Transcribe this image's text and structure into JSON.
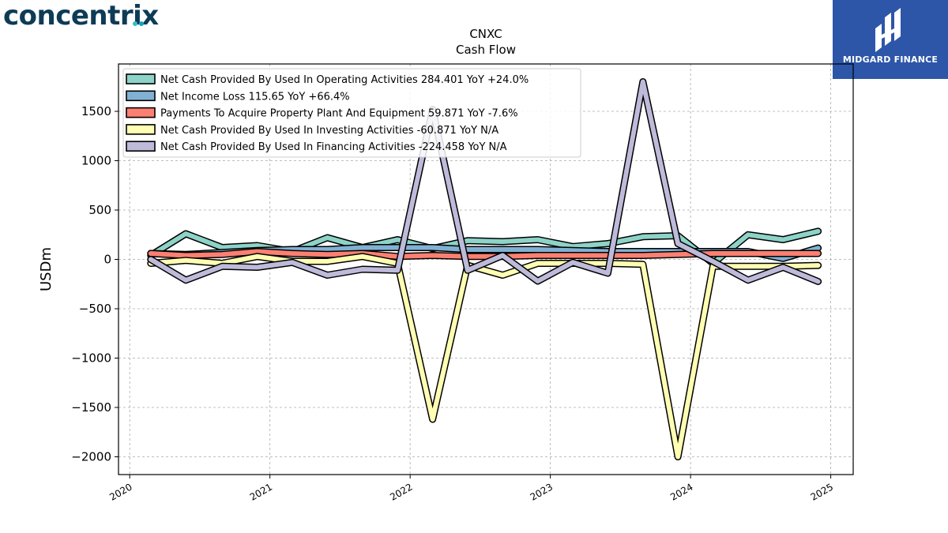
{
  "brand": {
    "name": "concentrix",
    "dot_colors": [
      "#2fc1c5",
      "#1aa3b8"
    ]
  },
  "partner": {
    "name": "MIDGARD FINANCE",
    "color": "#2d56a8"
  },
  "chart_data": {
    "type": "line",
    "title": "CNXC",
    "subtitle": "Cash Flow",
    "ylabel": "USDm",
    "xlabel": "",
    "ylim": [
      -2180,
      1980
    ],
    "xlim": [
      2019.92,
      2025.16
    ],
    "yticks": [
      -2000,
      -1500,
      -1000,
      -500,
      0,
      500,
      1000,
      1500
    ],
    "ytick_labels": [
      "−2000",
      "−1500",
      "−1000",
      "−500",
      "0",
      "500",
      "1000",
      "1500"
    ],
    "xticks": [
      2020,
      2021,
      2022,
      2023,
      2024,
      2025
    ],
    "xtick_labels": [
      "2020",
      "2021",
      "2022",
      "2023",
      "2024",
      "2025"
    ],
    "grid": true,
    "legend_position": "upper-left",
    "x": [
      2020.15,
      2020.4,
      2020.66,
      2020.91,
      2021.16,
      2021.41,
      2021.66,
      2021.91,
      2022.16,
      2022.41,
      2022.66,
      2022.91,
      2023.16,
      2023.41,
      2023.66,
      2023.91,
      2024.16,
      2024.41,
      2024.66,
      2024.91
    ],
    "series": [
      {
        "name": "Net Cash Provided By Used In Operating Activities",
        "legend_text": "Net Cash Provided By Used In Operating Activities  284.401 YoY +24.0%",
        "color": "#8dd3c7",
        "values": [
          40,
          260,
          120,
          140,
          80,
          220,
          120,
          200,
          110,
          190,
          180,
          200,
          130,
          160,
          230,
          240,
          -40,
          250,
          200,
          285
        ]
      },
      {
        "name": "Net Income Loss",
        "legend_text": "Net Income Loss  115.65 YoY +66.4%",
        "color": "#80b1d3",
        "values": [
          60,
          50,
          70,
          90,
          100,
          100,
          120,
          120,
          120,
          100,
          100,
          100,
          90,
          80,
          80,
          80,
          80,
          80,
          10,
          115
        ]
      },
      {
        "name": "Payments To Acquire Property Plant And Equipment",
        "legend_text": "Payments To Acquire Property Plant And Equipment  59.871 YoY -7.6%",
        "color": "#fb8072",
        "values": [
          60,
          40,
          50,
          80,
          60,
          50,
          60,
          30,
          40,
          30,
          30,
          40,
          40,
          40,
          40,
          50,
          60,
          60,
          60,
          60
        ]
      },
      {
        "name": "Net Cash Provided By Used In Investing Activities",
        "legend_text": "Net Cash Provided By Used In Investing Activities  -60.871 YoY N/A",
        "color": "#ffffb3",
        "values": [
          -40,
          -10,
          -40,
          30,
          -20,
          -20,
          30,
          -40,
          -1620,
          -60,
          -160,
          -40,
          -40,
          -40,
          -50,
          -2000,
          -70,
          -70,
          -70,
          -61
        ]
      },
      {
        "name": "Net Cash Provided By Used In Financing Activities",
        "legend_text": "Net Cash Provided By Used In Financing Activities  -224.458 YoY N/A",
        "color": "#bebada",
        "values": [
          0,
          -210,
          -70,
          -80,
          -30,
          -160,
          -100,
          -110,
          1520,
          -110,
          40,
          -220,
          -30,
          -140,
          1800,
          160,
          -20,
          -210,
          -80,
          -224
        ]
      }
    ]
  }
}
